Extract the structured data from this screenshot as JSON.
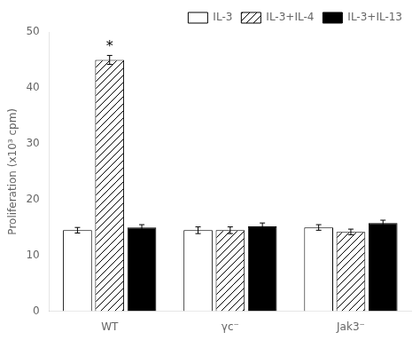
{
  "chart_data": {
    "type": "bar",
    "categories": [
      "WT",
      "γc⁻",
      "Jak3⁻"
    ],
    "series": [
      {
        "name": "IL-3",
        "color": "#ffffff",
        "values": [
          14.5,
          14.5,
          15.0
        ],
        "errors": [
          0.5,
          0.6,
          0.5
        ]
      },
      {
        "name": "IL-3+IL-4",
        "color": "#ffffff",
        "values": [
          45.0,
          14.5,
          14.2
        ],
        "errors": [
          0.8,
          0.6,
          0.5
        ]
      },
      {
        "name": "IL-3+IL-13",
        "color": "#000000",
        "values": [
          15.0,
          15.2,
          15.8
        ],
        "errors": [
          0.5,
          0.6,
          0.5
        ]
      }
    ],
    "ylabel": "Proliferation (x10³ cpm)",
    "ylim": [
      0,
      50
    ],
    "yticks": [
      0,
      10,
      20,
      30,
      40,
      50
    ],
    "annotations": [
      {
        "text": "*",
        "category": "WT",
        "series": "IL-3+IL-4"
      }
    ],
    "grid": false,
    "legend": "upper right"
  }
}
